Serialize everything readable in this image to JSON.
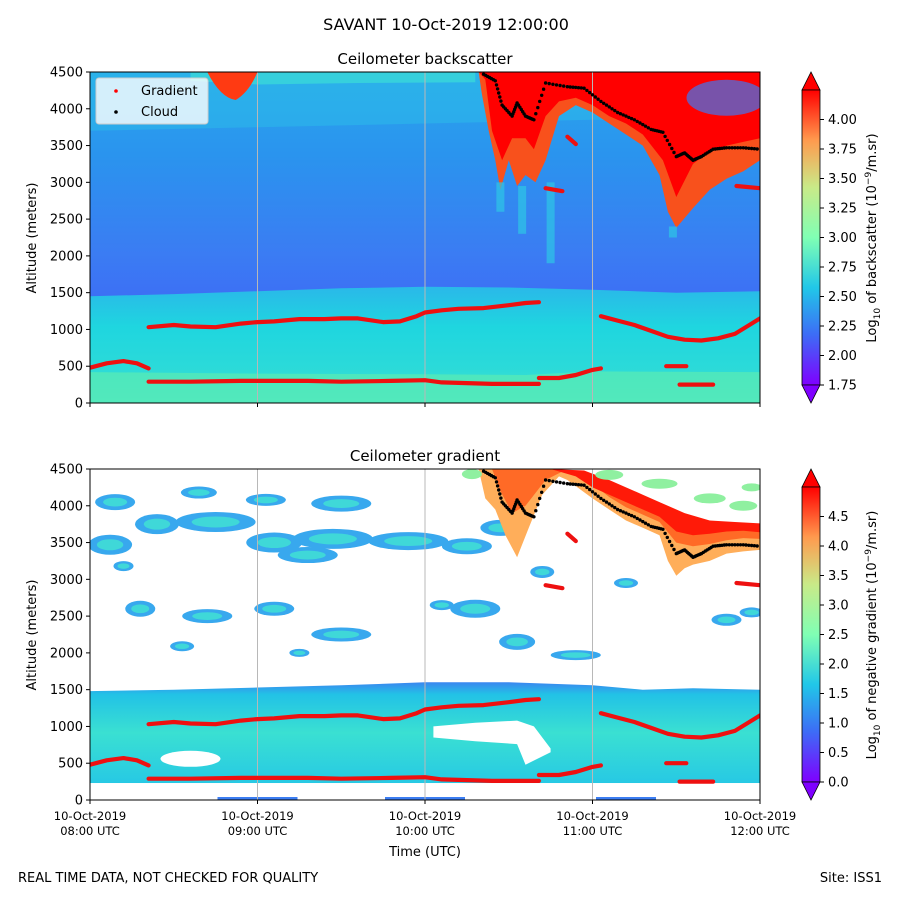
{
  "figure": {
    "suptitle": "SAVANT 10-Oct-2019 12:00:00",
    "footer_left": "REAL TIME DATA, NOT CHECKED FOR QUALITY",
    "footer_right": "Site: ISS1"
  },
  "chart_data": [
    {
      "type": "heatmap",
      "title": "Ceilometer backscatter",
      "xlabel": "",
      "ylabel": "Altitude (meters)",
      "ylim": [
        0,
        4500
      ],
      "yticks": [
        "0",
        "500",
        "1000",
        "1500",
        "2000",
        "2500",
        "3000",
        "3500",
        "4000",
        "4500"
      ],
      "xlim_hours": [
        8,
        12
      ],
      "grid": "vertical",
      "legend": {
        "placement": "upper-left",
        "entries": [
          {
            "label": "Gradient",
            "color": "#ff0000"
          },
          {
            "label": "Cloud",
            "color": "#000000"
          }
        ]
      },
      "colorbar": {
        "label_prefix": "Log",
        "label_sub": "10",
        "label_mid": " of backscatter (10",
        "label_sup": "−9",
        "label_suffix": "/m.sr)",
        "range": [
          1.75,
          4.25
        ],
        "ticks": [
          "1.75",
          "2.00",
          "2.25",
          "2.50",
          "2.75",
          "3.00",
          "3.25",
          "3.50",
          "3.75",
          "4.00"
        ],
        "colormap": "rainbow"
      },
      "layers": {
        "background_value": 2.25,
        "boundary_layer_value": 2.65,
        "cloud_value": 4.25
      }
    },
    {
      "type": "heatmap",
      "title": "Ceilometer gradient",
      "xlabel": "Time (UTC)",
      "ylabel": "Altitude (meters)",
      "ylim": [
        0,
        4500
      ],
      "yticks": [
        "0",
        "500",
        "1000",
        "1500",
        "2000",
        "2500",
        "3000",
        "3500",
        "4000",
        "4500"
      ],
      "xlim_hours": [
        8,
        12
      ],
      "grid": "vertical",
      "colorbar": {
        "label_prefix": "Log",
        "label_sub": "10",
        "label_mid": " of negative gradient (10",
        "label_sup": "−9",
        "label_suffix": "/m.sr)",
        "range": [
          0.0,
          5.0
        ],
        "ticks": [
          "0.0",
          "0.5",
          "1.0",
          "1.5",
          "2.0",
          "2.5",
          "3.0",
          "3.5",
          "4.0",
          "4.5"
        ],
        "colormap": "rainbow"
      }
    }
  ],
  "xticks": [
    {
      "hour": 8,
      "line1": "10-Oct-2019",
      "line2": "08:00 UTC"
    },
    {
      "hour": 9,
      "line1": "10-Oct-2019",
      "line2": "09:00 UTC"
    },
    {
      "hour": 10,
      "line1": "10-Oct-2019",
      "line2": "10:00 UTC"
    },
    {
      "hour": 11,
      "line1": "10-Oct-2019",
      "line2": "11:00 UTC"
    },
    {
      "hour": 12,
      "line1": "10-Oct-2019",
      "line2": "12:00 UTC"
    }
  ],
  "series": {
    "gradient_upper": [
      [
        8.35,
        1030
      ],
      [
        8.5,
        1060
      ],
      [
        8.6,
        1040
      ],
      [
        8.75,
        1030
      ],
      [
        8.9,
        1080
      ],
      [
        9.0,
        1100
      ],
      [
        9.1,
        1110
      ],
      [
        9.25,
        1140
      ],
      [
        9.4,
        1140
      ],
      [
        9.5,
        1150
      ],
      [
        9.6,
        1150
      ],
      [
        9.75,
        1100
      ],
      [
        9.85,
        1110
      ],
      [
        9.95,
        1180
      ],
      [
        10.0,
        1230
      ],
      [
        10.1,
        1260
      ],
      [
        10.2,
        1280
      ],
      [
        10.35,
        1290
      ],
      [
        10.5,
        1330
      ],
      [
        10.6,
        1360
      ],
      [
        10.68,
        1370
      ]
    ],
    "gradient_lower": [
      [
        8.0,
        480
      ],
      [
        8.1,
        540
      ],
      [
        8.2,
        570
      ],
      [
        8.28,
        540
      ],
      [
        8.35,
        470
      ]
    ],
    "gradient_300": [
      [
        8.35,
        290
      ],
      [
        8.6,
        290
      ],
      [
        8.9,
        300
      ],
      [
        9.3,
        300
      ],
      [
        9.5,
        290
      ],
      [
        9.8,
        300
      ],
      [
        10.0,
        310
      ],
      [
        10.1,
        280
      ],
      [
        10.4,
        260
      ],
      [
        10.6,
        260
      ],
      [
        10.68,
        260
      ]
    ],
    "gradient_430": [
      [
        10.68,
        340
      ],
      [
        10.8,
        340
      ],
      [
        10.9,
        380
      ],
      [
        11.0,
        450
      ],
      [
        11.05,
        470
      ]
    ],
    "gradient_tail": [
      [
        11.05,
        1180
      ],
      [
        11.15,
        1120
      ],
      [
        11.25,
        1060
      ],
      [
        11.35,
        980
      ],
      [
        11.45,
        900
      ],
      [
        11.55,
        860
      ],
      [
        11.65,
        850
      ],
      [
        11.75,
        880
      ],
      [
        11.85,
        940
      ],
      [
        11.95,
        1080
      ],
      [
        12.0,
        1150
      ]
    ],
    "gradient_500": [
      [
        11.44,
        500
      ],
      [
        11.56,
        500
      ]
    ],
    "gradient_250": [
      [
        11.52,
        250
      ],
      [
        11.72,
        250
      ]
    ],
    "gradient_2900": [
      [
        10.72,
        2920
      ],
      [
        10.82,
        2880
      ]
    ],
    "gradient_2950r": [
      [
        11.86,
        2950
      ],
      [
        12.0,
        2920
      ]
    ],
    "gradient_3550": [
      [
        10.85,
        3620
      ],
      [
        10.9,
        3520
      ]
    ],
    "cloud_main": [
      [
        10.35,
        4470
      ],
      [
        10.42,
        4380
      ],
      [
        10.46,
        4050
      ],
      [
        10.52,
        3900
      ],
      [
        10.55,
        4080
      ],
      [
        10.6,
        3900
      ],
      [
        10.65,
        3850
      ],
      [
        10.72,
        4350
      ],
      [
        10.85,
        4300
      ],
      [
        10.95,
        4280
      ],
      [
        11.05,
        4100
      ],
      [
        11.15,
        3950
      ],
      [
        11.25,
        3850
      ],
      [
        11.35,
        3720
      ],
      [
        11.42,
        3680
      ],
      [
        11.5,
        3350
      ],
      [
        11.55,
        3400
      ],
      [
        11.6,
        3300
      ],
      [
        11.65,
        3350
      ],
      [
        11.72,
        3450
      ],
      [
        11.8,
        3470
      ],
      [
        11.9,
        3470
      ],
      [
        12.0,
        3450
      ]
    ]
  }
}
